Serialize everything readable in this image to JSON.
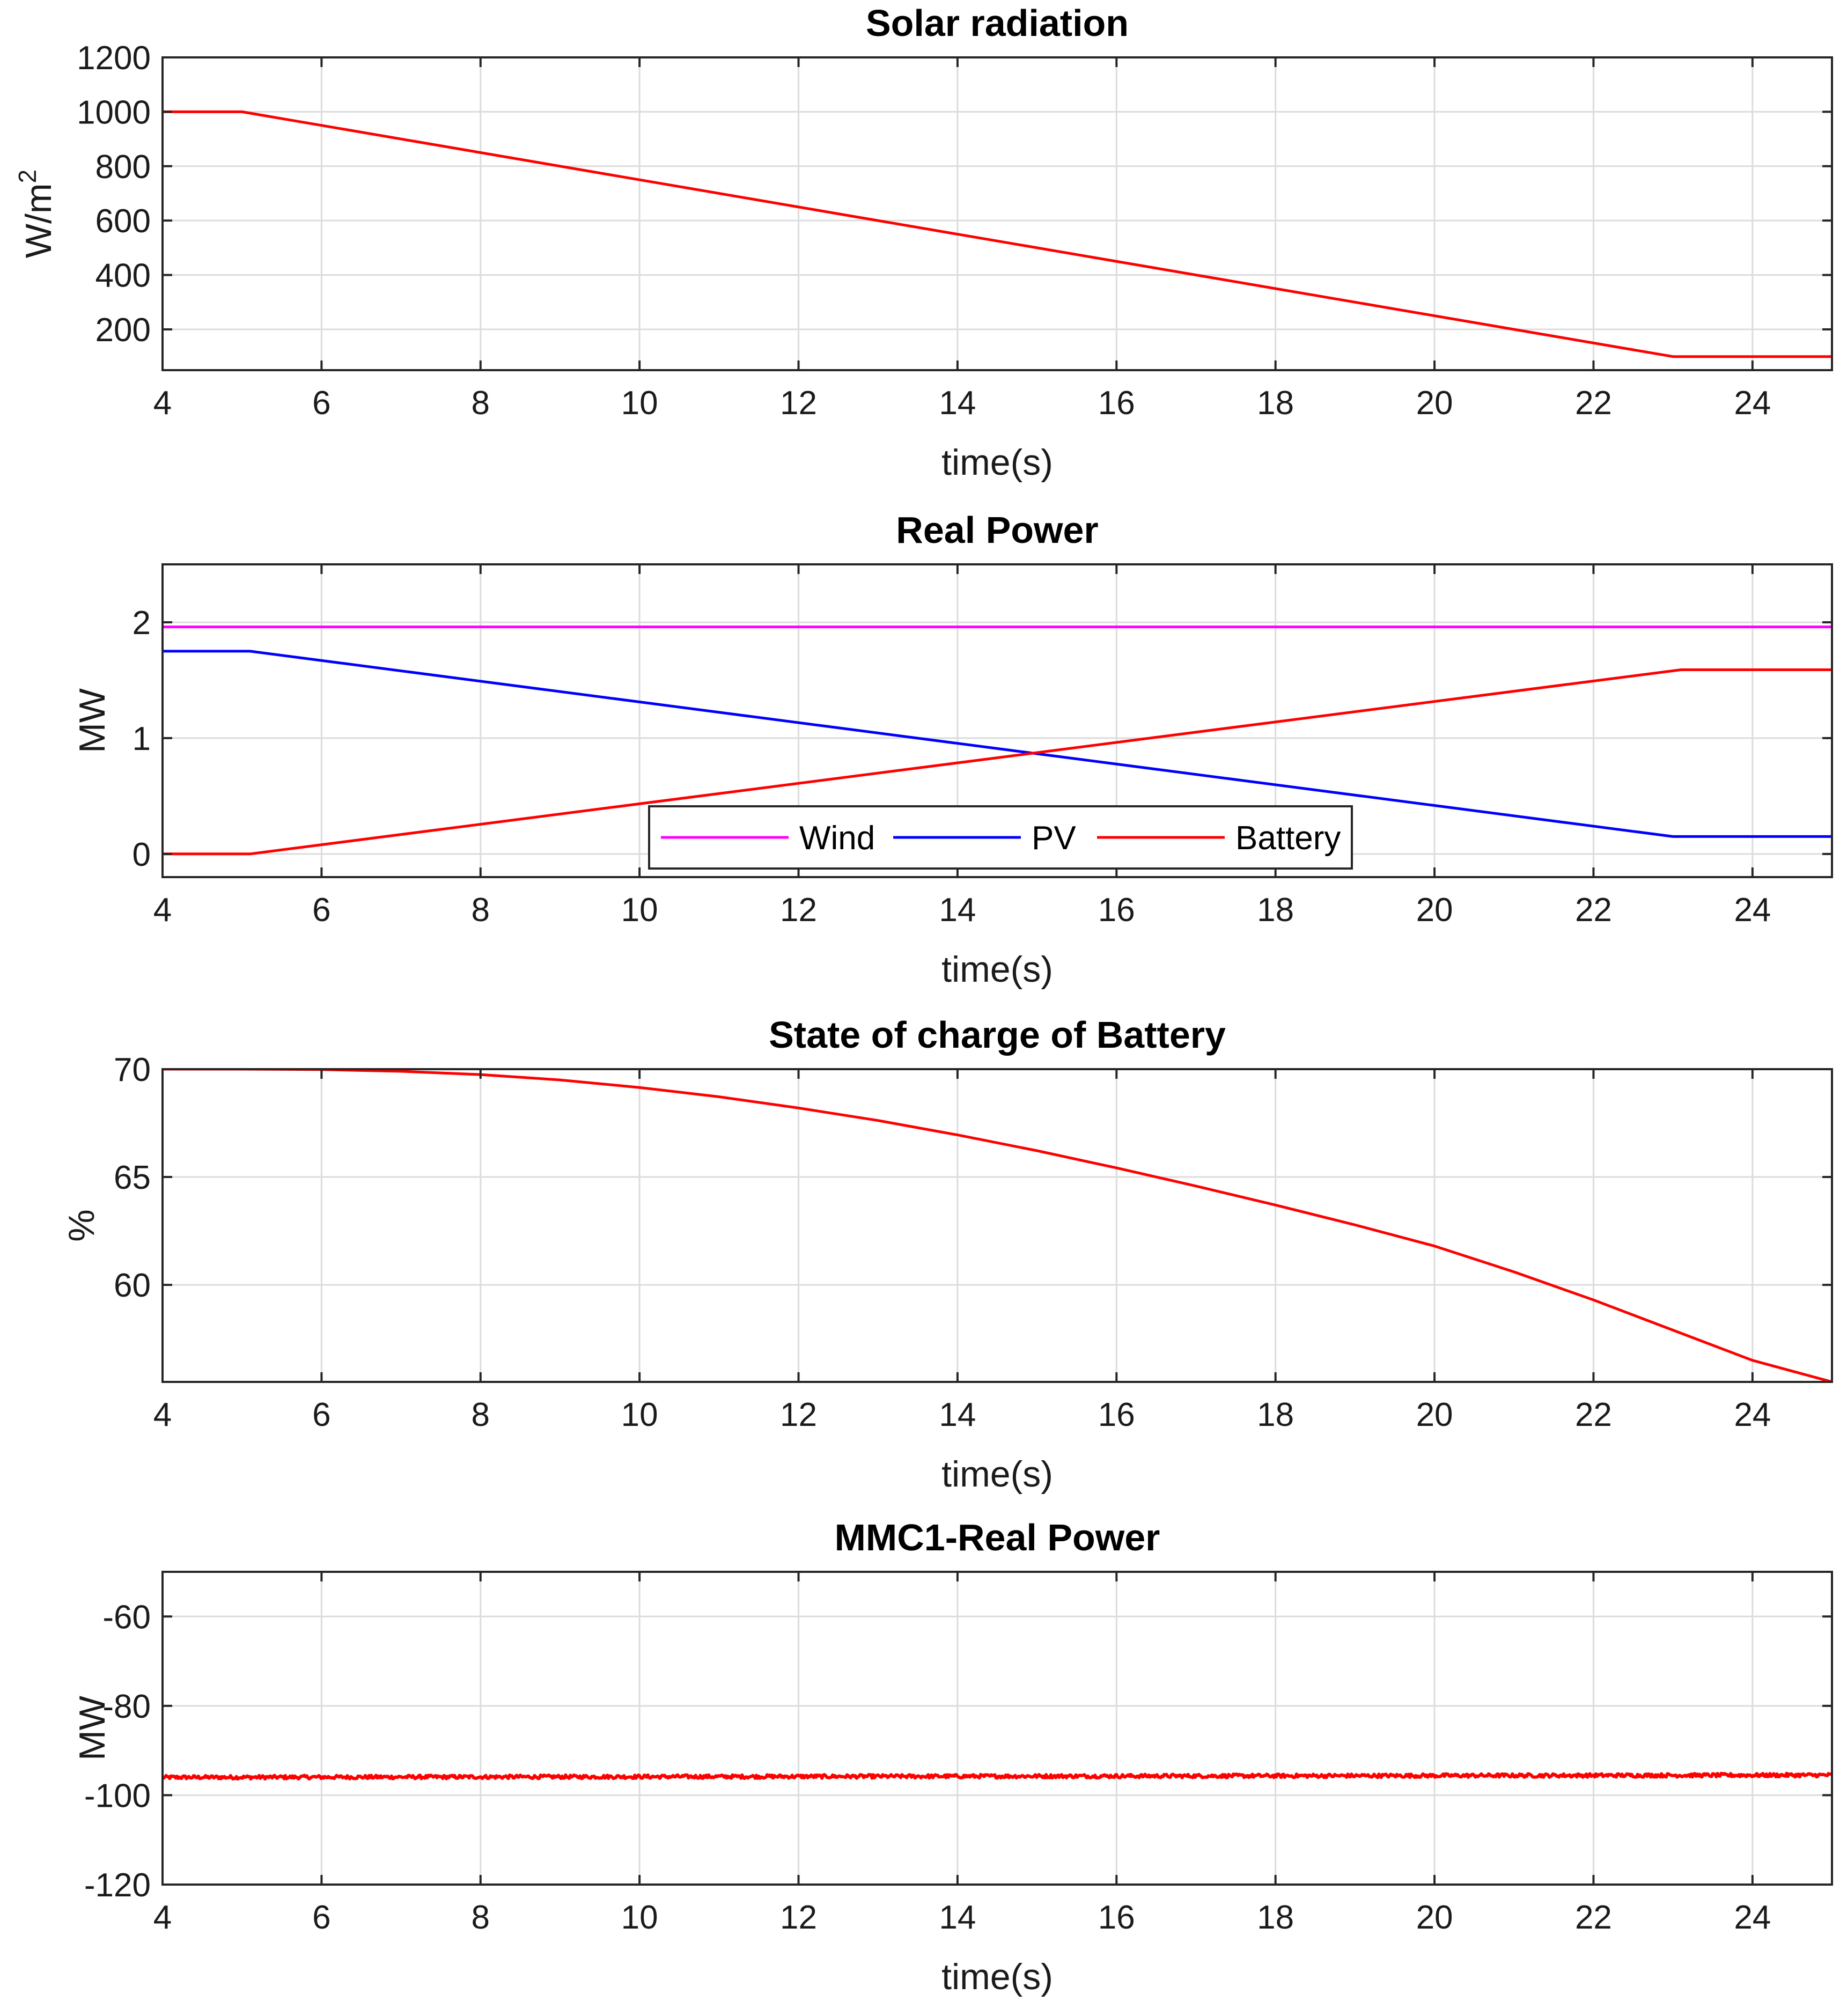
{
  "chart_data": [
    {
      "type": "line",
      "title": "Solar radiation",
      "xlabel": "time(s)",
      "ylabel": "W/m",
      "ylabel_sup": "2",
      "xlim": [
        4,
        25
      ],
      "ylim": [
        50,
        1200
      ],
      "xticks": [
        4,
        6,
        8,
        10,
        12,
        14,
        16,
        18,
        20,
        22,
        24
      ],
      "yticks": [
        200,
        400,
        600,
        800,
        1000,
        1200
      ],
      "grid": true,
      "series": [
        {
          "name": "Solar radiation",
          "color": "#ff0000",
          "x": [
            4,
            5,
            23,
            25
          ],
          "y": [
            1000,
            1000,
            100,
            100
          ]
        }
      ]
    },
    {
      "type": "line",
      "title": "Real Power",
      "xlabel": "time(s)",
      "ylabel": "MW",
      "xlim": [
        4,
        25
      ],
      "ylim": [
        -0.2,
        2.5
      ],
      "xticks": [
        4,
        6,
        8,
        10,
        12,
        14,
        16,
        18,
        20,
        22,
        24
      ],
      "yticks": [
        0,
        1,
        2
      ],
      "grid": true,
      "legend": "bottom-center",
      "series": [
        {
          "name": "Wind",
          "color": "#ff00ff",
          "x": [
            4,
            25
          ],
          "y": [
            1.96,
            1.96
          ]
        },
        {
          "name": "PV",
          "color": "#0000ff",
          "x": [
            4,
            5.1,
            23,
            25
          ],
          "y": [
            1.75,
            1.75,
            0.15,
            0.15
          ]
        },
        {
          "name": "Battery",
          "color": "#ff0000",
          "x": [
            4,
            5.1,
            23.1,
            25
          ],
          "y": [
            0,
            0,
            1.59,
            1.59
          ]
        }
      ]
    },
    {
      "type": "line",
      "title": "State of charge of Battery",
      "xlabel": "time(s)",
      "ylabel": "%",
      "xlim": [
        4,
        25
      ],
      "ylim": [
        55.5,
        70
      ],
      "xticks": [
        4,
        6,
        8,
        10,
        12,
        14,
        16,
        18,
        20,
        22,
        24
      ],
      "yticks": [
        60,
        65,
        70
      ],
      "grid": true,
      "series": [
        {
          "name": "SOC",
          "color": "#ff0000",
          "x": [
            4,
            5,
            6,
            7,
            8,
            9,
            10,
            11,
            12,
            13,
            14,
            15,
            16,
            17,
            18,
            19,
            20,
            21,
            22,
            23,
            24,
            25
          ],
          "y": [
            70,
            70,
            69.98,
            69.9,
            69.75,
            69.5,
            69.15,
            68.72,
            68.2,
            67.62,
            66.95,
            66.22,
            65.42,
            64.58,
            63.7,
            62.78,
            61.8,
            60.6,
            59.3,
            57.9,
            56.5,
            55.5
          ]
        }
      ]
    },
    {
      "type": "line",
      "title": "MMC1-Real Power",
      "xlabel": "time(s)",
      "ylabel": "MW",
      "xlim": [
        4,
        25
      ],
      "ylim": [
        -120,
        -50
      ],
      "xticks": [
        4,
        6,
        8,
        10,
        12,
        14,
        16,
        18,
        20,
        22,
        24
      ],
      "yticks": [
        -120,
        -100,
        -80,
        -60
      ],
      "grid": true,
      "series": [
        {
          "name": "MMC1",
          "color": "#ff0000",
          "x": [
            4,
            25
          ],
          "y": [
            -96,
            -95.5
          ],
          "noise": 0.4
        }
      ]
    }
  ]
}
